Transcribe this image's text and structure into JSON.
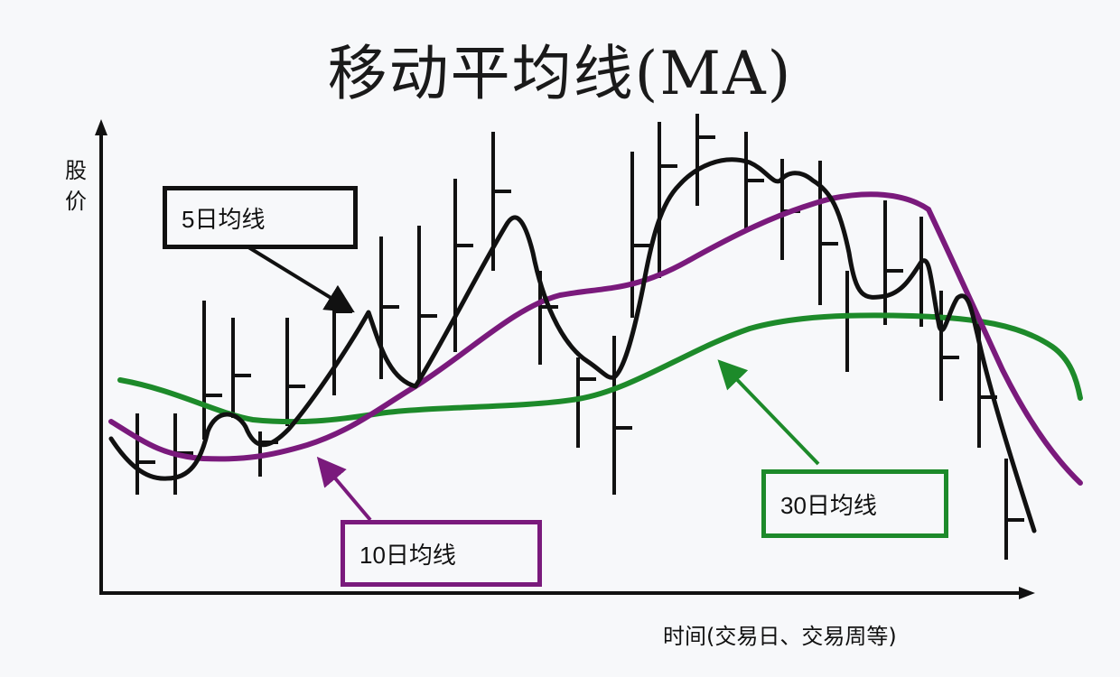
{
  "title": "移动平均线(MA)",
  "axes": {
    "y_label": "股价",
    "x_label": "时间(交易日、交易周等)"
  },
  "callouts": {
    "ma5": "5日均线",
    "ma10": "10日均线",
    "ma30": "30日均线"
  },
  "colors": {
    "ma5": "#111111",
    "ma10": "#7a1a7c",
    "ma30": "#1d8a2a",
    "bars": "#111111"
  }
}
